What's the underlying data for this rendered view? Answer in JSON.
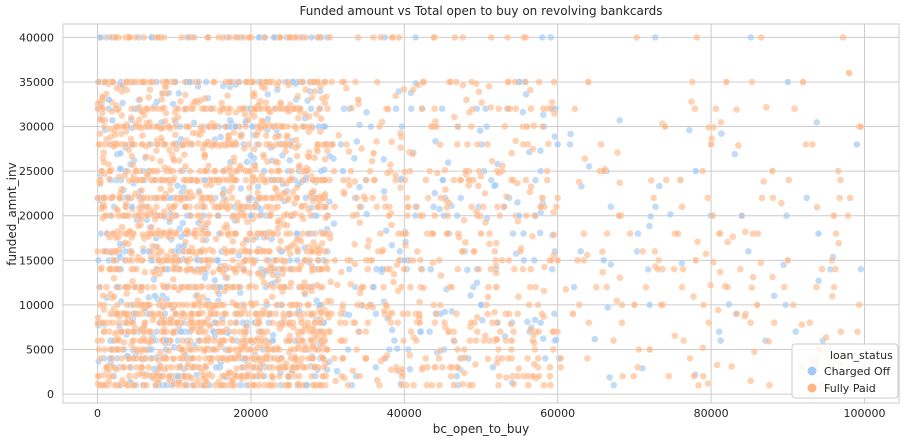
{
  "chart_data": {
    "type": "scatter",
    "title": "Funded amount vs Total open to buy on revolving bankcards",
    "xlabel": "bc_open_to_buy",
    "ylabel": "funded_amnt_inv",
    "xlim": [
      -4500,
      104500
    ],
    "ylim": [
      -1000,
      41500
    ],
    "xticks": [
      0,
      20000,
      40000,
      60000,
      80000,
      100000
    ],
    "xtick_labels": [
      "0",
      "20000",
      "40000",
      "60000",
      "80000",
      "100000"
    ],
    "yticks": [
      0,
      5000,
      10000,
      15000,
      20000,
      25000,
      30000,
      35000,
      40000
    ],
    "ytick_labels": [
      "0",
      "5000",
      "10000",
      "15000",
      "20000",
      "25000",
      "30000",
      "35000",
      "40000"
    ],
    "grid": true,
    "legend": {
      "title": "loan_status",
      "placement": "bottom-right",
      "entries": [
        {
          "label": "Charged Off",
          "color": "#a1c9f4"
        },
        {
          "label": "Fully Paid",
          "color": "#ffb482"
        }
      ]
    },
    "series": [
      {
        "name": "Fully Paid",
        "color": "#ffb482",
        "note": "dense point cloud; representative sample points",
        "x": [
          500,
          2000,
          3500,
          5000,
          6500,
          8000,
          9500,
          11000,
          12500,
          14000,
          15500,
          17000,
          18500,
          20000,
          22000,
          24000,
          26000,
          28000,
          30000,
          32000,
          34000,
          36000,
          38000,
          40000,
          42000,
          44000,
          46000,
          48000,
          50000,
          52000,
          54000,
          56000,
          58000,
          60000,
          62000,
          64000,
          66000,
          68000,
          70000,
          72000,
          74000,
          76000,
          78000,
          80000,
          82000,
          84000,
          86000,
          88000,
          90000,
          92000,
          94000,
          96000,
          98000,
          99500
        ],
        "y": [
          40000,
          35000,
          30000,
          25000,
          20000,
          15000,
          10000,
          5000,
          1000,
          28000,
          24000,
          18000,
          12000,
          6000,
          35000,
          30000,
          22000,
          16000,
          9000,
          4000,
          33000,
          27000,
          20000,
          14000,
          8000,
          3000,
          35000,
          25000,
          18000,
          12000,
          6000,
          30000,
          22000,
          15000,
          9000,
          35000,
          25000,
          20000,
          10000,
          5000,
          30000,
          24000,
          15000,
          28000,
          35000,
          20000,
          10000,
          25000,
          15000,
          35000,
          5000,
          20000,
          36000,
          30000
        ]
      },
      {
        "name": "Charged Off",
        "color": "#a1c9f4",
        "note": "overlapping point cloud; representative sample points",
        "x": [
          300,
          1500,
          3000,
          4500,
          6000,
          7500,
          9000,
          10500,
          12000,
          14000,
          16000,
          18000,
          20000,
          23000,
          26000,
          29000,
          32000,
          36000,
          40000,
          45000,
          50000,
          55000,
          60000,
          66000,
          72000,
          78000,
          84000,
          90000,
          94000,
          99000
        ],
        "y": [
          40000,
          33000,
          27000,
          21000,
          16000,
          11000,
          6000,
          2000,
          35000,
          24000,
          12000,
          30000,
          20000,
          40000,
          18000,
          10000,
          25000,
          12000,
          15000,
          24000,
          10000,
          20000,
          28000,
          15000,
          10000,
          25000,
          20000,
          35000,
          18000,
          28000
        ]
      }
    ]
  }
}
